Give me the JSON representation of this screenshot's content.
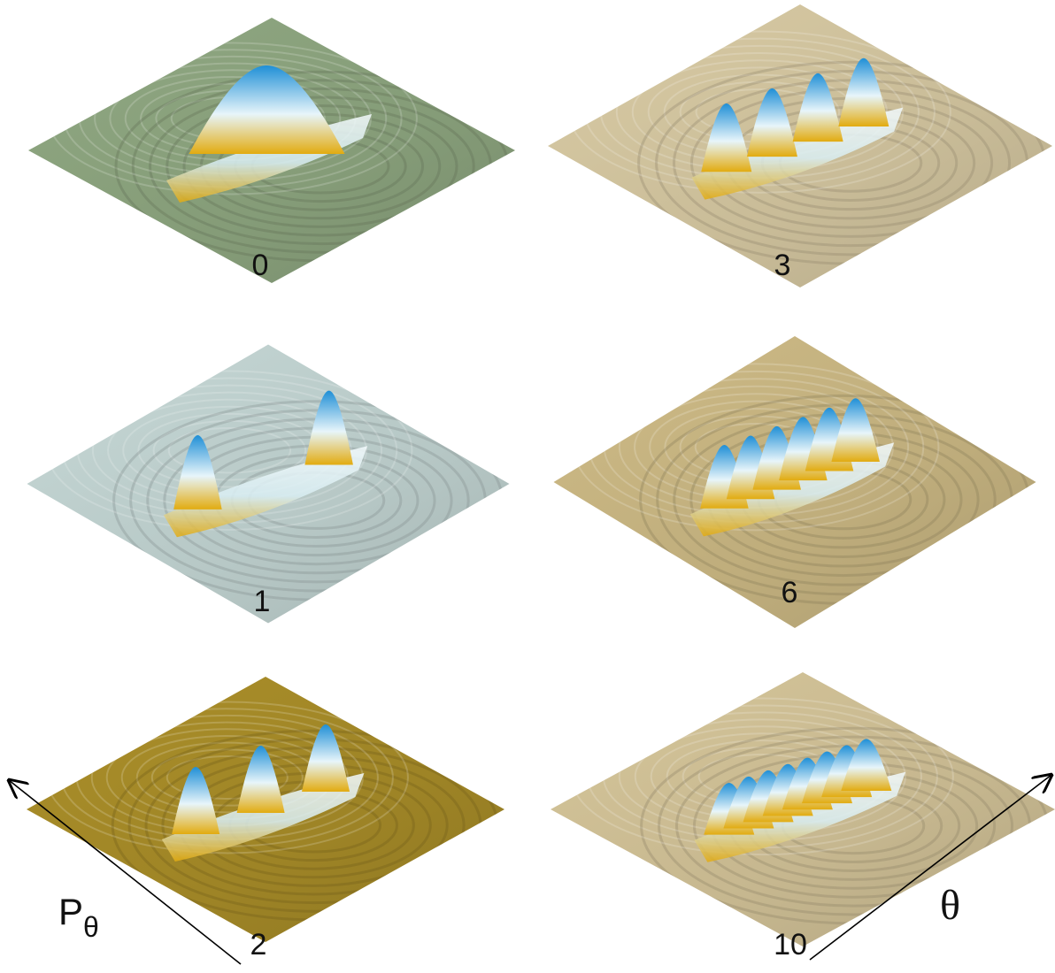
{
  "panels": [
    {
      "label": "0",
      "bump_count": 1,
      "surface_color": "#859c78",
      "peak_color": "#1f8fd6",
      "trough_color": "#e2ab10"
    },
    {
      "label": "1",
      "bump_count": 2,
      "surface_color": "#b7c8c6",
      "peak_color": "#1f8fd6",
      "trough_color": "#e2ab10"
    },
    {
      "label": "2",
      "bump_count": 3,
      "surface_color": "#9e8426",
      "peak_color": "#1f8fd6",
      "trough_color": "#e2ab10"
    },
    {
      "label": "3",
      "bump_count": 4,
      "surface_color": "#c9bc98",
      "peak_color": "#1f8fd6",
      "trough_color": "#e2ab10"
    },
    {
      "label": "6",
      "bump_count": 6,
      "surface_color": "#bfad7c",
      "peak_color": "#1f8fd6",
      "trough_color": "#e2ab10"
    },
    {
      "label": "10",
      "bump_count": 8,
      "surface_color": "#c6b78f",
      "peak_color": "#1f8fd6",
      "trough_color": "#e2ab10"
    }
  ],
  "axes": {
    "momentum_label": "P",
    "momentum_subscript": "θ",
    "angle_label": "θ"
  }
}
